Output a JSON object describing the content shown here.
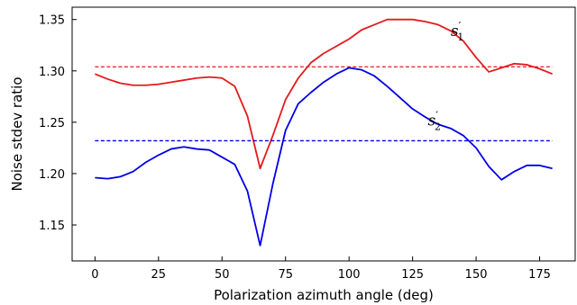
{
  "chart_data": {
    "type": "line",
    "xlabel": "Polarization azimuth angle (deg)",
    "ylabel": "Noise stdev ratio",
    "xlim": [
      -9,
      189
    ],
    "ylim": [
      1.115,
      1.362
    ],
    "xticks": [
      0,
      25,
      50,
      75,
      100,
      125,
      150,
      175
    ],
    "yticks": [
      1.15,
      1.2,
      1.25,
      1.3,
      1.35
    ],
    "ytick_labels": [
      "1.15",
      "1.20",
      "1.25",
      "1.30",
      "1.35"
    ],
    "grid": false,
    "series": [
      {
        "name": "s'1",
        "label_main": "s",
        "label_prime": "′",
        "label_sub": "1",
        "color": "#e41a1c",
        "x": [
          0,
          5,
          10,
          15,
          20,
          25,
          30,
          35,
          40,
          45,
          50,
          55,
          60,
          65,
          70,
          75,
          80,
          85,
          90,
          95,
          100,
          105,
          110,
          115,
          120,
          125,
          130,
          135,
          140,
          145,
          150,
          155,
          160,
          165,
          170,
          175,
          180
        ],
        "y": [
          1.297,
          1.292,
          1.288,
          1.286,
          1.286,
          1.287,
          1.289,
          1.291,
          1.293,
          1.294,
          1.293,
          1.285,
          1.256,
          1.205,
          1.237,
          1.272,
          1.293,
          1.308,
          1.317,
          1.324,
          1.331,
          1.34,
          1.345,
          1.35,
          1.35,
          1.35,
          1.348,
          1.345,
          1.339,
          1.329,
          1.313,
          1.299,
          1.303,
          1.307,
          1.306,
          1.302,
          1.297
        ],
        "mean": 1.304
      },
      {
        "name": "s'2",
        "label_main": "s",
        "label_prime": "′",
        "label_sub": "2",
        "color": "#0000e6",
        "x": [
          0,
          5,
          10,
          15,
          20,
          25,
          30,
          35,
          40,
          45,
          50,
          55,
          60,
          65,
          70,
          75,
          80,
          85,
          90,
          95,
          100,
          105,
          110,
          115,
          120,
          125,
          130,
          135,
          140,
          145,
          150,
          155,
          160,
          165,
          170,
          175,
          180
        ],
        "y": [
          1.196,
          1.195,
          1.197,
          1.202,
          1.211,
          1.218,
          1.224,
          1.226,
          1.224,
          1.223,
          1.216,
          1.209,
          1.183,
          1.13,
          1.19,
          1.242,
          1.268,
          1.279,
          1.289,
          1.297,
          1.303,
          1.301,
          1.295,
          1.285,
          1.274,
          1.263,
          1.255,
          1.248,
          1.244,
          1.237,
          1.225,
          1.207,
          1.194,
          1.202,
          1.208,
          1.208,
          1.205
        ],
        "mean": 1.232
      }
    ]
  }
}
